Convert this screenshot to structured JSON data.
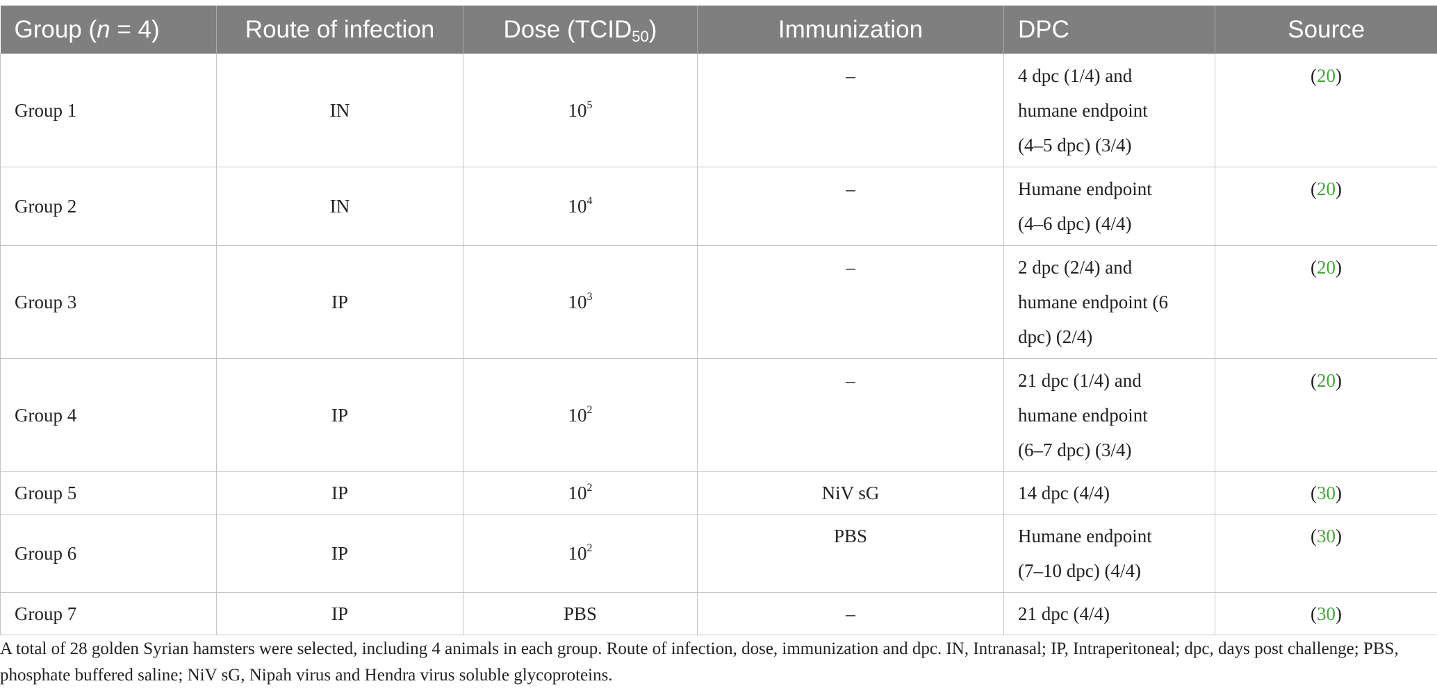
{
  "headers": {
    "group_prefix": "Group (",
    "group_n": "n",
    "group_suffix": " = 4)",
    "route": "Route of infection",
    "dose_prefix": "Dose (TCID",
    "dose_sub": "50",
    "dose_suffix": ")",
    "immunization": "Immunization",
    "dpc": "DPC",
    "source": "Source"
  },
  "rows": [
    {
      "group": "Group 1",
      "route": "IN",
      "dose_base": "10",
      "dose_exp": "5",
      "immunization": "–",
      "dpc_lines": [
        "4 dpc (1/4) and",
        "humane endpoint",
        "(4–5 dpc) (3/4)"
      ],
      "source_ref": "20"
    },
    {
      "group": "Group 2",
      "route": "IN",
      "dose_base": "10",
      "dose_exp": "4",
      "immunization": "–",
      "dpc_lines": [
        "Humane endpoint",
        "(4–6 dpc) (4/4)"
      ],
      "source_ref": "20"
    },
    {
      "group": "Group 3",
      "route": "IP",
      "dose_base": "10",
      "dose_exp": "3",
      "immunization": "–",
      "dpc_lines": [
        "2 dpc (2/4) and",
        "humane endpoint (6",
        "dpc) (2/4)"
      ],
      "source_ref": "20"
    },
    {
      "group": "Group 4",
      "route": "IP",
      "dose_base": "10",
      "dose_exp": "2",
      "immunization": "–",
      "dpc_lines": [
        "21 dpc (1/4) and",
        "humane endpoint",
        "(6–7 dpc) (3/4)"
      ],
      "source_ref": "20"
    },
    {
      "group": "Group 5",
      "route": "IP",
      "dose_base": "10",
      "dose_exp": "2",
      "immunization": "NiV sG",
      "dpc_lines": [
        "14 dpc (4/4)"
      ],
      "source_ref": "30"
    },
    {
      "group": "Group 6",
      "route": "IP",
      "dose_base": "10",
      "dose_exp": "2",
      "immunization": "PBS",
      "dpc_lines": [
        "Humane endpoint",
        "(7–10 dpc) (4/4)"
      ],
      "source_ref": "30"
    },
    {
      "group": "Group 7",
      "route": "IP",
      "dose_base": "PBS",
      "dose_exp": "",
      "immunization": "–",
      "dpc_lines": [
        "21 dpc (4/4)"
      ],
      "source_ref": "30"
    }
  ],
  "source_open": "(",
  "source_close": ")",
  "footnote": "A total of 28 golden Syrian hamsters were selected, including 4 animals in each group. Route of infection, dose, immunization and dpc. IN, Intranasal; IP, Intraperitoneal; dpc, days post challenge; PBS, phosphate buffered saline; NiV sG, Nipah virus and Hendra virus soluble glycoproteins.",
  "colors": {
    "header_bg": "#7f7f7f",
    "header_text": "#ffffff",
    "link": "#4aa33f",
    "border": "#c4c4c4"
  }
}
